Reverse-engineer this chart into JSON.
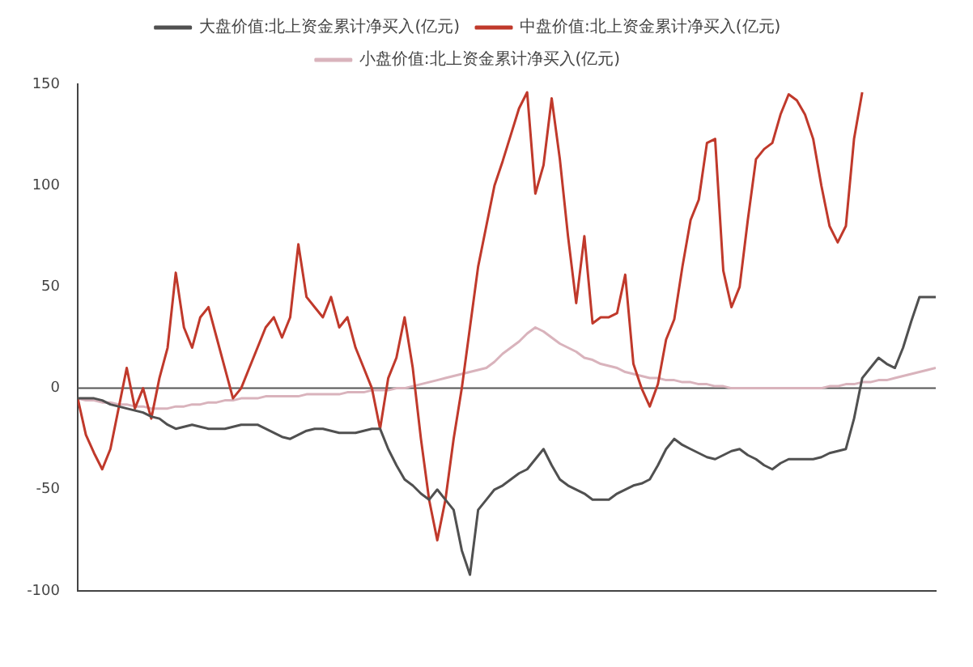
{
  "chart_data": {
    "type": "line",
    "legend": "top",
    "grid": false,
    "marker": "none",
    "line_style": "solid",
    "categories": [
      null,
      null,
      null,
      null,
      null,
      null,
      null,
      null,
      null,
      null,
      null,
      null,
      null,
      null,
      null,
      null,
      null,
      null,
      null,
      null,
      null,
      null,
      null,
      null,
      null,
      null,
      null,
      null,
      null,
      null,
      null,
      null,
      null,
      null,
      null,
      null,
      null,
      null,
      null,
      null,
      null,
      null,
      null,
      null,
      null,
      null,
      null,
      null,
      null,
      null,
      null,
      null,
      null,
      null,
      null,
      null,
      null,
      null,
      null,
      null,
      null,
      null,
      null,
      null,
      null,
      null,
      null,
      null,
      null,
      null,
      null,
      null,
      null,
      null,
      null,
      null,
      null,
      null,
      null,
      null,
      null,
      null,
      null,
      null,
      null,
      null,
      null,
      null,
      null,
      null,
      null,
      null,
      null,
      null,
      null,
      null,
      null,
      null,
      null,
      null,
      null,
      null,
      null,
      null,
      null,
      null
    ],
    "ylim": [
      -100,
      150
    ],
    "yticks": [
      -100,
      -50,
      0,
      50,
      100,
      150
    ],
    "ref_lines": [
      {
        "axis": "y",
        "value": 0,
        "color": "#555555"
      }
    ],
    "series": [
      {
        "name": "大盘价值:北上资金累计净买入(亿元)",
        "color": "#505050",
        "values": [
          -5,
          -5,
          -5,
          -6,
          -8,
          -9,
          -10,
          -11,
          -12,
          -14,
          -15,
          -18,
          -20,
          -19,
          -18,
          -19,
          -20,
          -20,
          -20,
          -19,
          -18,
          -18,
          -18,
          -20,
          -22,
          -24,
          -25,
          -23,
          -21,
          -20,
          -20,
          -21,
          -22,
          -22,
          -22,
          -21,
          -20,
          -20,
          -30,
          -38,
          -45,
          -48,
          -52,
          -55,
          -50,
          -55,
          -60,
          -80,
          -92,
          -60,
          -55,
          -50,
          -48,
          -45,
          -42,
          -40,
          -35,
          -30,
          -38,
          -45,
          -48,
          -50,
          -52,
          -55,
          -55,
          -55,
          -52,
          -50,
          -48,
          -47,
          -45,
          -38,
          -30,
          -25,
          -28,
          -30,
          -32,
          -34,
          -35,
          -33,
          -31,
          -30,
          -33,
          -35,
          -38,
          -40,
          -37,
          -35,
          -35,
          -35,
          -35,
          -34,
          -32,
          -31,
          -30,
          -15,
          5,
          10,
          15,
          12,
          10,
          20,
          33,
          45,
          45,
          45
        ]
      },
      {
        "name": "中盘价值:北上资金累计净买入(亿元)",
        "color": "#c0392b",
        "values": [
          -5,
          -23,
          -32,
          -40,
          -30,
          -10,
          10,
          -10,
          0,
          -15,
          5,
          20,
          57,
          30,
          20,
          35,
          40,
          25,
          10,
          -5,
          0,
          10,
          20,
          30,
          35,
          25,
          35,
          71,
          45,
          40,
          35,
          45,
          30,
          35,
          20,
          10,
          0,
          -20,
          5,
          15,
          35,
          10,
          -25,
          -55,
          -75,
          -55,
          -25,
          0,
          30,
          60,
          80,
          100,
          112,
          125,
          138,
          146,
          96,
          110,
          143,
          113,
          75,
          42,
          75,
          32,
          35,
          35,
          37,
          56,
          12,
          0,
          -9,
          2,
          24,
          34,
          60,
          83,
          93,
          121,
          123,
          58,
          40,
          50,
          83,
          113,
          118,
          121,
          135,
          145,
          142,
          135,
          123,
          100,
          80,
          72,
          80,
          123,
          146,
          null,
          null,
          null,
          null,
          null,
          null,
          null,
          null,
          null
        ]
      },
      {
        "name": "小盘价值:北上资金累计净买入(亿元)",
        "color": "#d9b3bc",
        "values": [
          -5,
          -6,
          -6,
          -7,
          -7,
          -8,
          -8,
          -9,
          -9,
          -10,
          -10,
          -10,
          -9,
          -9,
          -8,
          -8,
          -7,
          -7,
          -6,
          -6,
          -5,
          -5,
          -5,
          -4,
          -4,
          -4,
          -4,
          -4,
          -3,
          -3,
          -3,
          -3,
          -3,
          -2,
          -2,
          -2,
          -1,
          -1,
          -1,
          0,
          0,
          1,
          2,
          3,
          4,
          5,
          6,
          7,
          8,
          9,
          10,
          13,
          17,
          20,
          23,
          27,
          30,
          28,
          25,
          22,
          20,
          18,
          15,
          14,
          12,
          11,
          10,
          8,
          7,
          6,
          5,
          5,
          4,
          4,
          3,
          3,
          2,
          2,
          1,
          1,
          0,
          0,
          0,
          0,
          0,
          0,
          0,
          0,
          0,
          0,
          0,
          0,
          1,
          1,
          2,
          2,
          3,
          3,
          4,
          4,
          5,
          6,
          7,
          8,
          9,
          10
        ]
      }
    ]
  }
}
